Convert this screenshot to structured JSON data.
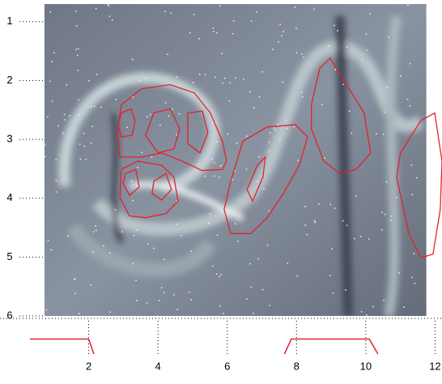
{
  "chart_data": {
    "type": "contour",
    "xlim": [
      0,
      12.2
    ],
    "ylim": [
      0.7,
      6
    ],
    "xticks": [
      2,
      4,
      6,
      8,
      10,
      12
    ],
    "yticks": [
      1,
      2,
      3,
      4,
      5,
      6
    ],
    "image_extent": {
      "x": [
        0.72,
        11.75
      ],
      "y": [
        0.7,
        6
      ]
    },
    "color": "#e3222b",
    "contours": [
      {
        "x": [
          2.94,
          3.53,
          4.35,
          5.05,
          5.51,
          5.86,
          5.98,
          5.86,
          5.28,
          4.7,
          4.11,
          3.53,
          2.9,
          2.83
        ],
        "y": [
          2.41,
          2.14,
          2.07,
          2.21,
          2.55,
          3.03,
          3.37,
          3.51,
          3.53,
          3.37,
          3.23,
          3.3,
          3.3,
          2.89
        ]
      },
      {
        "x": [
          2.94,
          3.22,
          3.34,
          3.25,
          2.94,
          2.85
        ],
        "y": [
          2.55,
          2.48,
          2.68,
          2.93,
          2.96,
          2.75
        ]
      },
      {
        "x": [
          3.88,
          4.35,
          4.63,
          4.46,
          4.0,
          3.64
        ],
        "y": [
          2.55,
          2.48,
          2.82,
          3.16,
          3.23,
          2.93
        ]
      },
      {
        "x": [
          4.86,
          5.28,
          5.44,
          5.21,
          4.86
        ],
        "y": [
          2.55,
          2.52,
          2.89,
          3.23,
          3.07
        ]
      },
      {
        "x": [
          2.94,
          3.41,
          4.11,
          4.46,
          4.58,
          4.23,
          3.64,
          3.18,
          2.9
        ],
        "y": [
          3.51,
          3.37,
          3.44,
          3.64,
          4.05,
          4.26,
          4.33,
          4.3,
          3.99
        ]
      },
      {
        "x": [
          3.06,
          3.36,
          3.46,
          3.18,
          2.99
        ],
        "y": [
          3.58,
          3.51,
          3.81,
          3.95,
          3.75
        ]
      },
      {
        "x": [
          3.88,
          4.23,
          4.39,
          4.11,
          3.83
        ],
        "y": [
          3.71,
          3.58,
          3.85,
          4.03,
          3.92
        ]
      },
      {
        "x": [
          6.1,
          6.45,
          7.15,
          7.97,
          8.32,
          8.08,
          7.62,
          7.15,
          6.68,
          6.1,
          5.91
        ],
        "y": [
          3.71,
          3.03,
          2.79,
          2.75,
          2.96,
          3.44,
          3.92,
          4.33,
          4.6,
          4.6,
          4.19
        ]
      },
      {
        "x": [
          6.57,
          6.87,
          7.1,
          7.03,
          6.73
        ],
        "y": [
          3.85,
          3.44,
          3.3,
          3.64,
          4.05
        ]
      },
      {
        "x": [
          8.43,
          8.67,
          8.97,
          9.37,
          9.95,
          10.14,
          9.72,
          9.25,
          8.79,
          8.43
        ],
        "y": [
          2.41,
          1.79,
          1.62,
          2.0,
          2.55,
          3.23,
          3.51,
          3.58,
          3.37,
          2.82
        ]
      },
      {
        "x": [
          11.59,
          11.99,
          12.2,
          12.15,
          11.94,
          11.59,
          11.24,
          10.89,
          11.0
        ],
        "y": [
          2.68,
          2.55,
          3.37,
          4.19,
          4.95,
          5.01,
          4.6,
          3.64,
          3.23
        ]
      }
    ],
    "profile": {
      "ylim": [
        0,
        1
      ],
      "x": [
        0.3,
        2.0,
        2.15,
        5,
        7.65,
        7.85,
        10.1,
        10.35
      ],
      "y": [
        0.45,
        0.45,
        0,
        null,
        0,
        0.45,
        0.45,
        0
      ]
    }
  }
}
